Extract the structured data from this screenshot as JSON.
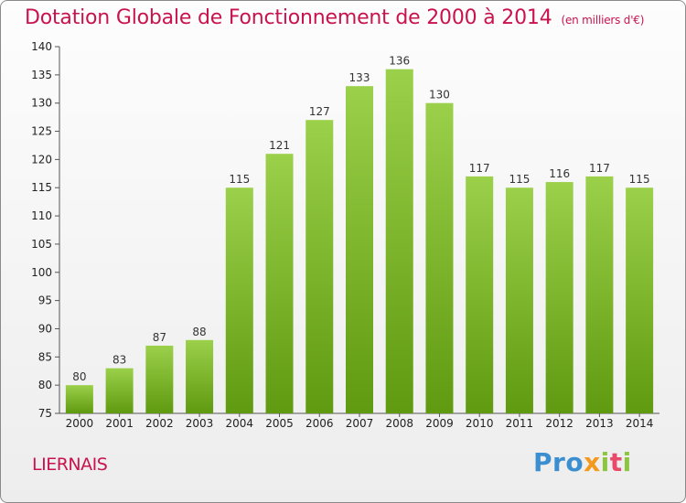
{
  "title": "Dotation Globale de Fonctionnement de 2000 à 2014",
  "unit_note": "(en milliers d'€)",
  "commune": "LIERNAIS",
  "logo": {
    "p1": "Pro",
    "p2": "x",
    "p3": "i",
    "p4": "t",
    "p5": "i"
  },
  "colors": {
    "bar_light": "#9bd04a",
    "bar_dark": "#5f9a10",
    "title": "#c8134e"
  },
  "chart_data": {
    "type": "bar",
    "categories": [
      "2000",
      "2001",
      "2002",
      "2003",
      "2004",
      "2005",
      "2006",
      "2007",
      "2008",
      "2009",
      "2010",
      "2011",
      "2012",
      "2013",
      "2014"
    ],
    "values": [
      80,
      83,
      87,
      88,
      115,
      121,
      127,
      133,
      136,
      130,
      117,
      115,
      116,
      117,
      115
    ],
    "ylim": [
      75,
      140
    ],
    "yticks": [
      75,
      80,
      85,
      90,
      95,
      100,
      105,
      110,
      115,
      120,
      125,
      130,
      135,
      140
    ],
    "grid": false
  }
}
